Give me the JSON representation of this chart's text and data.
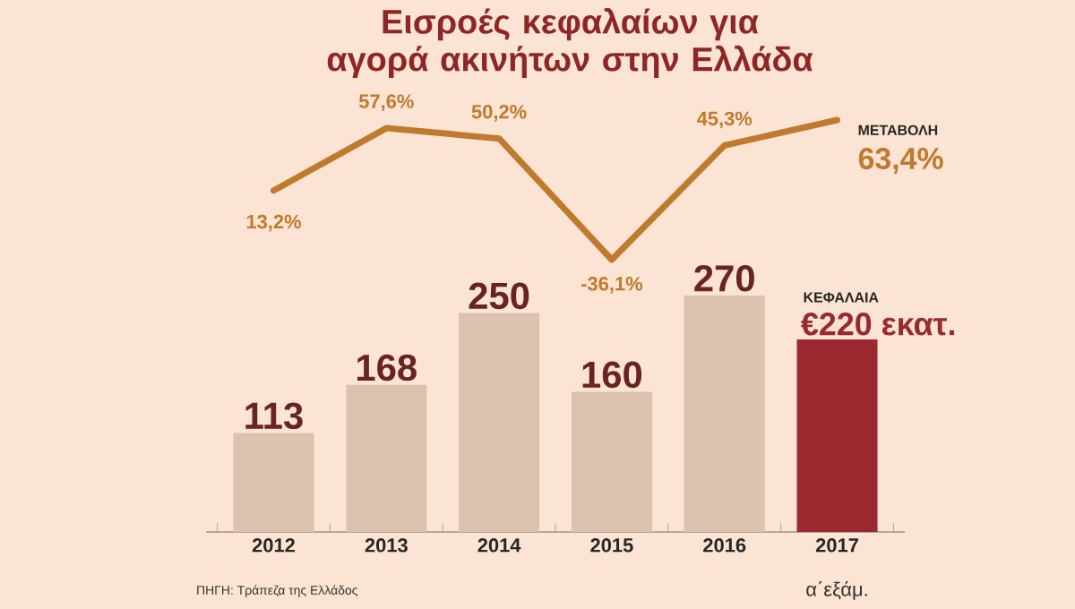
{
  "chart_data": [
    {
      "type": "line",
      "title": "Εισροές κεφαλαίων για αγορά ακινήτων στην Ελλάδα",
      "categories": [
        "2012",
        "2013",
        "2014",
        "2015",
        "2016",
        "2017"
      ],
      "tick_labels": false,
      "series": [
        {
          "name": "ΜΕΤΑΒΟΛΗ",
          "color": "#bf7a2e",
          "values": [
            13.2,
            57.6,
            50.2,
            -36.1,
            45.3,
            63.4
          ],
          "value_labels": [
            "13,2%",
            "57,6%",
            "50,2%",
            "-36,1%",
            "45,3%",
            "63,4%"
          ]
        }
      ]
    },
    {
      "type": "bar",
      "categories": [
        "2012",
        "2013",
        "2014",
        "2015",
        "2016",
        "2017"
      ],
      "grid": false,
      "series": [
        {
          "name": "ΚΕΦΑΛΑΙΑ",
          "values": [
            113,
            168,
            250,
            160,
            270,
            220
          ],
          "colors": [
            "#dcc1ad",
            "#dcc1ad",
            "#dcc1ad",
            "#dcc1ad",
            "#dcc1ad",
            "#9a2a2f"
          ],
          "value_labels": [
            "113",
            "168",
            "250",
            "160",
            "270",
            "€220 εκατ."
          ]
        }
      ],
      "annotations": [
        "α΄εξάμ.",
        "ΠΗΓΗ: Τράπεζα της Ελλάδος"
      ]
    }
  ]
}
